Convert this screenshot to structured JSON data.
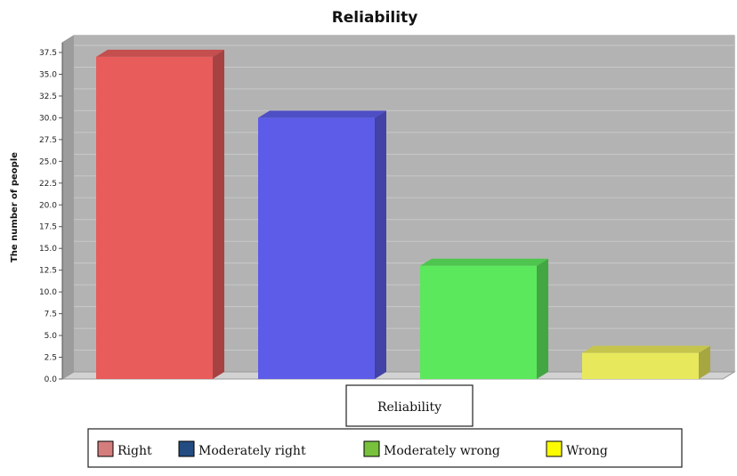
{
  "chart_data": {
    "type": "bar",
    "title": "Reliability",
    "xlabel": "",
    "ylabel": "The number of people",
    "categories": [
      "Reliability"
    ],
    "series": [
      {
        "name": "Right",
        "values": [
          37
        ],
        "color": "#E85C5C",
        "swatch": "#D47D7D"
      },
      {
        "name": "Moderately right",
        "values": [
          30
        ],
        "color": "#5C5CE8",
        "swatch": "#234C82"
      },
      {
        "name": "Moderately wrong",
        "values": [
          13
        ],
        "color": "#5CE85C",
        "swatch": "#78C13C"
      },
      {
        "name": "Wrong",
        "values": [
          3
        ],
        "color": "#E8E85C",
        "swatch": "#FCFC00"
      }
    ],
    "ylim": [
      0,
      37.5
    ],
    "yticks": [
      "0.0",
      "2.5",
      "5.0",
      "7.5",
      "10.0",
      "12.5",
      "15.0",
      "17.5",
      "20.0",
      "22.5",
      "25.0",
      "27.5",
      "30.0",
      "32.5",
      "35.0",
      "37.5"
    ],
    "grid": true,
    "legend_position": "bottom",
    "render_style": "3d",
    "plot_background": "#B3B3B3"
  }
}
